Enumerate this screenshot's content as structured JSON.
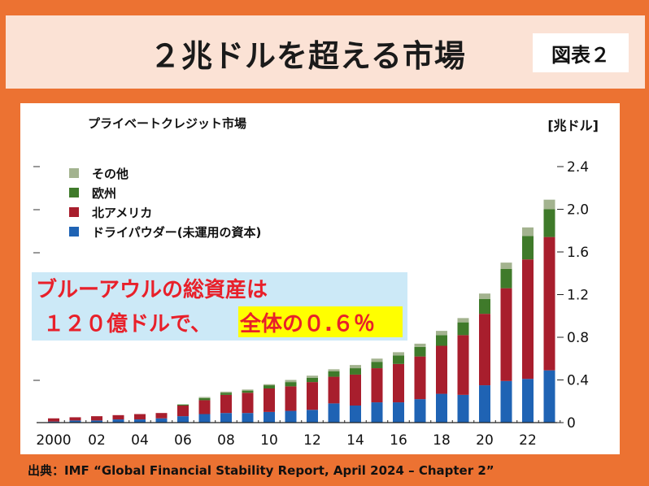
{
  "header": {
    "title": "２兆ドルを超える市場",
    "figure_label": "図表２"
  },
  "chart_data": {
    "type": "bar",
    "stacked": true,
    "title": "プライベートクレジット市場",
    "unit_label": "[兆ドル]",
    "x": [
      2000,
      2001,
      2002,
      2003,
      2004,
      2005,
      2006,
      2007,
      2008,
      2009,
      2010,
      2011,
      2012,
      2013,
      2014,
      2015,
      2016,
      2017,
      2018,
      2019,
      2020,
      2021,
      2022,
      2023
    ],
    "x_tick_labels": [
      "2000",
      "02",
      "04",
      "06",
      "08",
      "10",
      "12",
      "14",
      "16",
      "18",
      "20",
      "22"
    ],
    "ylim": [
      0,
      2.4
    ],
    "y_ticks": [
      0,
      0.4,
      0.8,
      1.2,
      1.6,
      2.0,
      2.4
    ],
    "y_tick_labels": [
      "0",
      "0.4",
      "0.8",
      "1.2",
      "1.6",
      "2.0",
      "2.4"
    ],
    "series": [
      {
        "name": "ドライパウダー(未運用の資本)",
        "color": "#1f63b4",
        "values": [
          0.01,
          0.02,
          0.02,
          0.03,
          0.03,
          0.04,
          0.06,
          0.08,
          0.09,
          0.09,
          0.1,
          0.11,
          0.12,
          0.18,
          0.16,
          0.19,
          0.19,
          0.22,
          0.27,
          0.26,
          0.35,
          0.39,
          0.41,
          0.49
        ]
      },
      {
        "name": "北アメリカ",
        "color": "#a81e2d",
        "values": [
          0.03,
          0.03,
          0.04,
          0.04,
          0.05,
          0.05,
          0.1,
          0.13,
          0.17,
          0.19,
          0.22,
          0.23,
          0.26,
          0.25,
          0.29,
          0.32,
          0.36,
          0.4,
          0.45,
          0.56,
          0.67,
          0.87,
          1.12,
          1.25
        ]
      },
      {
        "name": "欧州",
        "color": "#3f7a2a",
        "values": [
          0.0,
          0.0,
          0.0,
          0.0,
          0.0,
          0.0,
          0.01,
          0.02,
          0.02,
          0.02,
          0.03,
          0.04,
          0.04,
          0.05,
          0.06,
          0.06,
          0.08,
          0.09,
          0.1,
          0.12,
          0.14,
          0.18,
          0.22,
          0.26
        ]
      },
      {
        "name": "その他",
        "color": "#a3b38f",
        "values": [
          0.0,
          0.0,
          0.0,
          0.0,
          0.0,
          0.0,
          0.0,
          0.01,
          0.01,
          0.01,
          0.01,
          0.02,
          0.02,
          0.02,
          0.03,
          0.03,
          0.03,
          0.03,
          0.04,
          0.04,
          0.05,
          0.06,
          0.08,
          0.09
        ]
      }
    ],
    "legend_order": [
      "その他",
      "欧州",
      "北アメリカ",
      "ドライパウダー(未運用の資本)"
    ],
    "legend_location": "top-left",
    "annotation": {
      "line1": "ブルーアウルの総資産は",
      "line2a": "１２０億ドルで、",
      "line2b": "全体の０.６％"
    }
  },
  "source": "出典：IMF “Global Financial Stability Report, April 2024 – Chapter 2”"
}
